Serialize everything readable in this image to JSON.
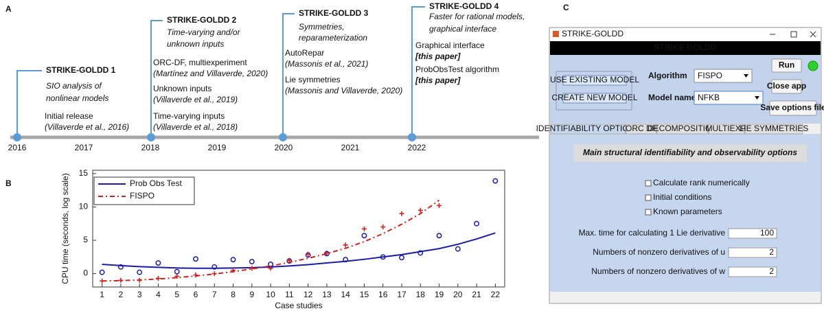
{
  "panels": [
    "A",
    "B",
    "C"
  ],
  "timeline": {
    "years": [
      2016,
      2017,
      2018,
      2019,
      2020,
      2021,
      2022
    ],
    "events": [
      {
        "title": "STRIKE-GOLDD 1",
        "subtitle": [
          "SIO analysis of",
          "nonlinear models"
        ],
        "item_color": "#111111",
        "items": [
          {
            "text": "Initial release",
            "ref": "(Villaverde et al., 2016)"
          }
        ]
      },
      {
        "title": "STRIKE-GOLDD 2",
        "subtitle": [
          "Time-varying and/or",
          "unknown inputs"
        ],
        "item_color": "#111111",
        "items": [
          {
            "text": "ORC-DF, multiexperiment",
            "ref": "(Martínez and Villaverde, 2020)"
          },
          {
            "text": "Unknown inputs",
            "ref": "(Villaverde et al., 2019)"
          },
          {
            "text": "Time-varying inputs",
            "ref": "(Villaverde et al., 2018)"
          }
        ]
      },
      {
        "title": "STRIKE-GOLDD 3",
        "subtitle": [
          "Symmetries,",
          "reparameterization"
        ],
        "item_color": "#111111",
        "items": [
          {
            "text": "AutoRepar",
            "ref": "(Massonis et al., 2021)"
          },
          {
            "text": "Lie symmetries",
            "ref": "(Massonis and Villaverde, 2020)"
          }
        ]
      },
      {
        "title": "STRIKE-GOLDD 4",
        "subtitle": [
          "Faster for rational models,",
          "graphical interface"
        ],
        "item_color": "#6aa84f",
        "items": [
          {
            "text": "Graphical interface",
            "ref": "[this paper]"
          },
          {
            "text": "ProbObsTest algorithm",
            "ref": "[this paper]"
          }
        ]
      }
    ]
  },
  "chart_data": {
    "type": "scatter",
    "xlabel": "Case studies",
    "ylabel": "CPU time (seconds, log scale)",
    "x": [
      1,
      2,
      3,
      4,
      5,
      6,
      7,
      8,
      9,
      10,
      11,
      12,
      13,
      14,
      15,
      16,
      17,
      18,
      19,
      20,
      21,
      22
    ],
    "xlim": [
      0.5,
      22.5
    ],
    "ylim": [
      -2,
      15.5
    ],
    "yticks": [
      0,
      5,
      10,
      15
    ],
    "legend": "top-left",
    "series": [
      {
        "name": "Prob Obs Test",
        "color": "#1a1aa8",
        "marker": "circle",
        "dash": false,
        "values": [
          0.2,
          1.0,
          0.2,
          1.6,
          0.3,
          2.2,
          1.0,
          2.1,
          1.8,
          1.4,
          1.9,
          2.8,
          3.0,
          2.1,
          5.7,
          2.5,
          2.4,
          3.1,
          5.7,
          3.7,
          7.5,
          13.9
        ],
        "fit": [
          1.4,
          1.2,
          1.05,
          0.95,
          0.85,
          0.8,
          0.8,
          0.85,
          0.9,
          1.0,
          1.15,
          1.35,
          1.6,
          1.85,
          2.15,
          2.5,
          2.85,
          3.3,
          3.75,
          4.4,
          5.2,
          6.1
        ]
      },
      {
        "name": "FISPO",
        "color": "#cc2222",
        "marker": "plus",
        "dash": true,
        "values": [
          -1.1,
          -1.0,
          -1.0,
          -0.7,
          -0.4,
          -0.2,
          0.0,
          0.5,
          0.8,
          0.8,
          2.0,
          2.9,
          3.1,
          4.3,
          6.7,
          7.0,
          9.0,
          9.5,
          10.2,
          null,
          null,
          null
        ],
        "fit": [
          -1.1,
          -1.05,
          -0.95,
          -0.8,
          -0.6,
          -0.35,
          -0.05,
          0.3,
          0.7,
          1.15,
          1.7,
          2.3,
          3.0,
          3.8,
          4.8,
          6.0,
          7.4,
          9.0,
          11.0,
          null,
          null,
          null
        ]
      }
    ]
  },
  "gui": {
    "window_title": "STRIKE-GOLDD",
    "header": "STRIKE GOLDD",
    "model_buttons": [
      "USE EXISTING MODEL",
      "CREATE NEW MODEL"
    ],
    "algorithm_label": "Algorithm",
    "algorithm_value": "FISPO",
    "model_label": "Model name",
    "model_value": "NFKB",
    "buttons": [
      "Run",
      "Close app",
      "Save options file"
    ],
    "tabs": [
      "IDENTIFIABILITY OPTIONS",
      "ORC DF",
      "DECOMPOSITION",
      "MULTIEXP.",
      "LIE SYMMETRIES"
    ],
    "heading": "Main structural identifiability and observability options",
    "checkboxes": [
      "Calculate rank numerically",
      "Initial conditions",
      "Known parameters"
    ],
    "fields": [
      {
        "label": "Max. time for calculating 1 Lie derivative",
        "value": "100"
      },
      {
        "label": "Numbers of nonzero derivatives of u",
        "value": "2"
      },
      {
        "label": "Numbers of nonzero derivatives of w",
        "value": "2"
      }
    ]
  }
}
